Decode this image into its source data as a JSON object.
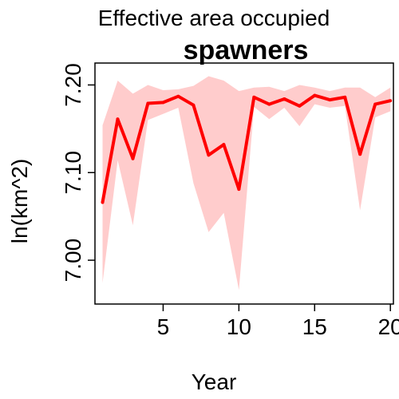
{
  "chart_data": {
    "type": "line",
    "title": "spawners",
    "subtitle": "Effective area occupied",
    "xlabel": "Year",
    "ylabel": "ln(km^2)",
    "xlim": [
      0.5,
      20.2
    ],
    "ylim": [
      6.95,
      7.225
    ],
    "x_ticks": [
      5,
      10,
      15,
      20
    ],
    "x_tick_labels": [
      "5",
      "10",
      "15",
      "20"
    ],
    "y_ticks": [
      7.0,
      7.1,
      7.2
    ],
    "y_tick_labels": [
      "7.00",
      "7.10",
      "7.20"
    ],
    "x": [
      1,
      2,
      3,
      4,
      5,
      6,
      7,
      8,
      9,
      10,
      11,
      12,
      13,
      14,
      15,
      16,
      17,
      18,
      19,
      20
    ],
    "series": [
      {
        "values": [
          7.066,
          7.161,
          7.116,
          7.179,
          7.18,
          7.187,
          7.177,
          7.12,
          7.132,
          7.081,
          7.186,
          7.178,
          7.184,
          7.176,
          7.188,
          7.183,
          7.186,
          7.121,
          7.178,
          7.182
        ],
        "lower": [
          6.974,
          7.114,
          7.04,
          7.16,
          7.167,
          7.174,
          7.088,
          7.032,
          7.054,
          6.966,
          7.175,
          7.161,
          7.174,
          7.153,
          7.178,
          7.174,
          7.176,
          7.057,
          7.163,
          7.17
        ],
        "upper": [
          7.154,
          7.205,
          7.19,
          7.2,
          7.194,
          7.195,
          7.199,
          7.21,
          7.205,
          7.193,
          7.197,
          7.198,
          7.193,
          7.2,
          7.197,
          7.193,
          7.197,
          7.197,
          7.186,
          7.197
        ]
      }
    ],
    "colors": {
      "line": "#ff0000",
      "band": "#ffcccc",
      "axis": "#000000"
    },
    "grid": false,
    "legend": "none"
  }
}
